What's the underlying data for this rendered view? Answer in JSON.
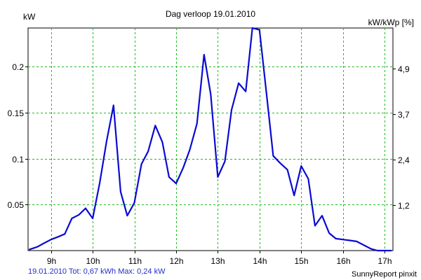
{
  "title": "Dag  verloop 19.01.2010",
  "left_unit": "kW",
  "right_unit": "kW/kWp [%]",
  "footer_left": "19.01.2010 Tot: 0,67 kWh Max: 0,24 kW",
  "footer_right": "SunnyReport pinxit",
  "colors": {
    "line": "#0a0ad2",
    "grid": "#22bb22",
    "footer": "#1f2fc8"
  },
  "chart_data": {
    "type": "line",
    "title": "Dag  verloop 19.01.2010",
    "ylabel": "kW",
    "y2label": "kW/kWp [%]",
    "xlim": [
      8.45,
      17.2
    ],
    "ylim": [
      0,
      0.242
    ],
    "yticks": [
      0.05,
      0.1,
      0.15,
      0.2
    ],
    "ytick_labels": [
      "0.05",
      "0.1",
      "0.15",
      "0.2"
    ],
    "y2ticks": [
      0.0494,
      0.0988,
      0.1482,
      0.1976
    ],
    "y2tick_labels": [
      "1,2",
      "2,4",
      "3,7",
      "4,9"
    ],
    "xticks": [
      9,
      10,
      11,
      12,
      13,
      14,
      15,
      16,
      17
    ],
    "xtick_labels": [
      "9h",
      "10h",
      "11h",
      "12h",
      "13h",
      "14h",
      "15h",
      "16h",
      "17h"
    ],
    "grid": true,
    "series": [
      {
        "x": [
          8.47,
          8.67,
          8.83,
          9.0,
          9.17,
          9.33,
          9.5,
          9.67,
          9.83,
          10.0,
          10.17,
          10.33,
          10.5,
          10.67,
          10.83,
          11.0,
          11.17,
          11.33,
          11.5,
          11.67,
          11.83,
          12.0,
          12.17,
          12.33,
          12.5,
          12.67,
          12.83,
          13.0,
          13.17,
          13.33,
          13.5,
          13.67,
          13.83,
          14.0,
          14.17,
          14.33,
          14.5,
          14.67,
          14.83,
          15.0,
          15.17,
          15.33,
          15.5,
          15.67,
          15.83,
          16.0,
          16.17,
          16.33,
          16.5,
          16.67,
          16.83,
          17.0,
          17.17
        ],
        "y": [
          0.001,
          0.004,
          0.008,
          0.012,
          0.015,
          0.018,
          0.035,
          0.039,
          0.046,
          0.035,
          0.074,
          0.118,
          0.158,
          0.064,
          0.038,
          0.052,
          0.094,
          0.108,
          0.136,
          0.118,
          0.08,
          0.073,
          0.09,
          0.11,
          0.138,
          0.213,
          0.17,
          0.08,
          0.097,
          0.153,
          0.182,
          0.173,
          0.242,
          0.24,
          0.17,
          0.103,
          0.095,
          0.088,
          0.06,
          0.092,
          0.078,
          0.027,
          0.038,
          0.019,
          0.013,
          0.012,
          0.011,
          0.01,
          0.006,
          0.002,
          0.0,
          0.0,
          0.0
        ]
      }
    ]
  }
}
